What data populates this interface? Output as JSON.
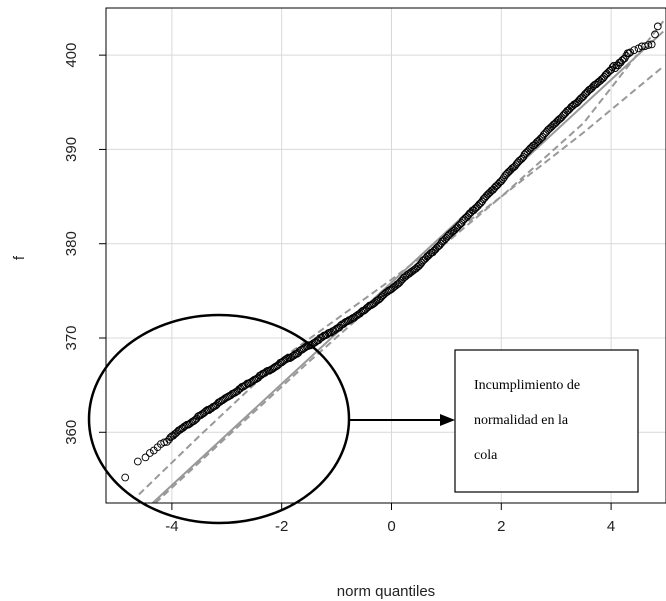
{
  "chart_data": {
    "type": "scatter",
    "subtype": "qq-plot",
    "title": "",
    "xlabel": "norm quantiles",
    "ylabel": "f",
    "xlim": [
      -5.2,
      5.0
    ],
    "ylim": [
      352.5,
      405.0
    ],
    "xticks": [
      -4,
      -2,
      0,
      2,
      4
    ],
    "xtick_labels": [
      "-4",
      "-2",
      "0",
      "2",
      "4"
    ],
    "yticks": [
      360,
      370,
      380,
      390,
      400
    ],
    "ytick_labels": [
      "360",
      "370",
      "380",
      "390",
      "400"
    ],
    "grid": true,
    "point_style": "open-circle",
    "point_color": "#000000",
    "line_color": "#999999",
    "points_curve": {
      "x": [
        -4.85,
        -4.6,
        -4.3,
        -4.0,
        -3.5,
        -3.0,
        -2.5,
        -2.0,
        -1.5,
        -1.0,
        -0.5,
        0.0,
        0.5,
        1.0,
        1.5,
        2.0,
        2.5,
        3.0,
        3.5,
        4.0,
        4.3,
        4.6,
        4.75,
        4.85
      ],
      "y": [
        355.2,
        356.8,
        358.1,
        359.6,
        361.7,
        363.7,
        365.6,
        367.4,
        369.2,
        371.0,
        372.9,
        375.2,
        377.7,
        380.6,
        383.6,
        386.7,
        389.9,
        392.9,
        395.7,
        398.4,
        400.0,
        401.0,
        401.3,
        403.2
      ]
    },
    "reference_line": {
      "x": [
        -4.35,
        4.95
      ],
      "y": [
        352.5,
        402.5
      ],
      "style": "solid"
    },
    "envelope_upper": {
      "x": [
        -4.6,
        -3.5,
        -2.0,
        0.0,
        2.0,
        3.5,
        4.95
      ],
      "y": [
        353.4,
        359.6,
        367.8,
        376.2,
        385.0,
        392.8,
        403.6
      ],
      "style": "dashed"
    },
    "envelope_lower": {
      "x": [
        -4.3,
        -3.0,
        -1.5,
        0.0,
        2.0,
        3.5,
        4.95
      ],
      "y": [
        352.5,
        359.5,
        367.5,
        375.2,
        385.0,
        391.8,
        398.8
      ],
      "style": "dashed"
    },
    "annotation": {
      "lines": [
        "Incumplimiento de",
        "normalidad en la",
        "cola"
      ],
      "target": "lower-left tail"
    }
  }
}
